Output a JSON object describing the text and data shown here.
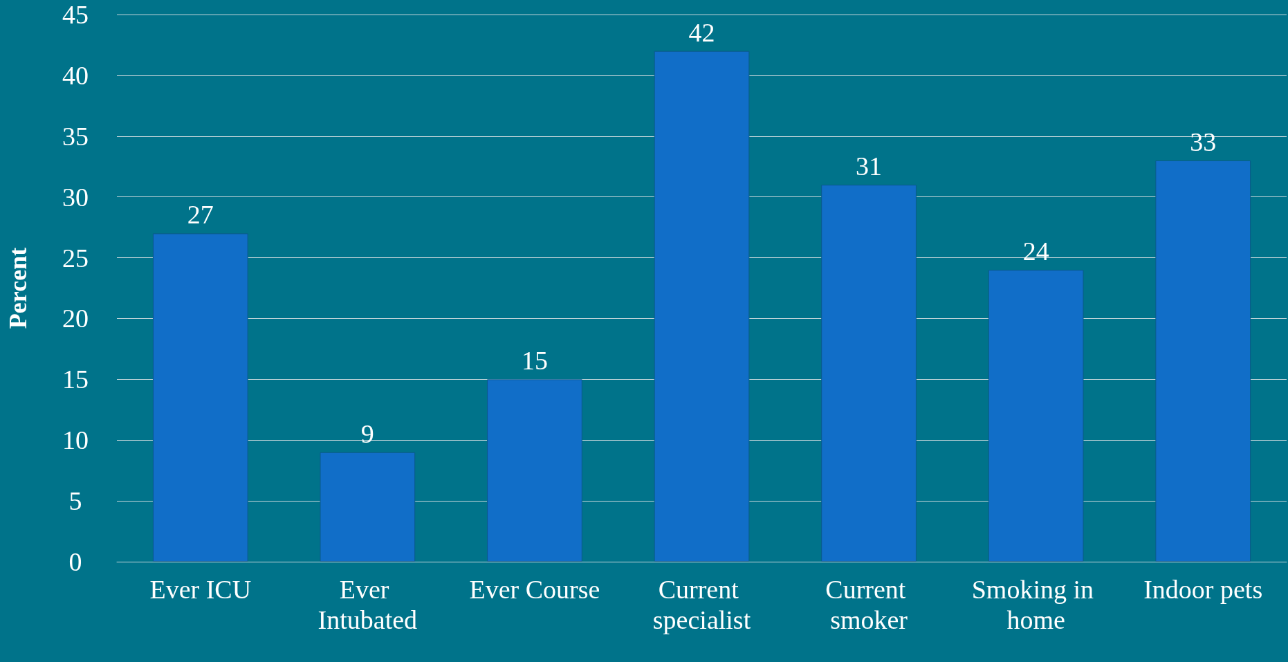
{
  "chart_data": {
    "type": "bar",
    "ylabel": "Percent",
    "categories": [
      "Ever ICU",
      "Ever Intubated",
      "Ever Course",
      "Current specialist",
      "Current smoker",
      "Smoking in home",
      "Indoor pets"
    ],
    "values": [
      27,
      9,
      15,
      42,
      31,
      24,
      33
    ],
    "color": "#116ec8",
    "ylim": [
      0,
      45
    ],
    "yticks": [
      0,
      5,
      10,
      15,
      20,
      25,
      30,
      35,
      40,
      45
    ],
    "grid": "y",
    "data_labels": true
  }
}
